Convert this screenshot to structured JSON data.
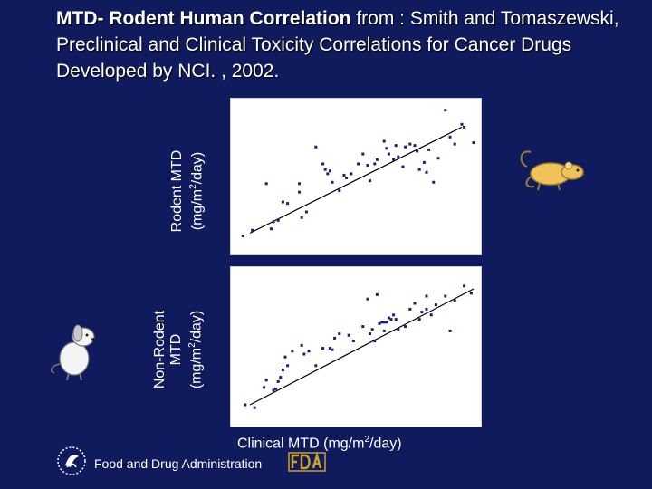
{
  "title": {
    "bold": "MTD- Rodent Human Correlation",
    "rest": " from : Smith and Tomaszewski, Preclinical and Clinical Toxicity Correlations for Cancer  Drugs Developed by NCI. ,  2002."
  },
  "axes": {
    "rodent_y_line1": "Rodent MTD",
    "rodent_y_line2_pre": "(mg/m",
    "rodent_y_line2_sup": "2",
    "rodent_y_line2_post": "/day)",
    "nonrodent_y_line1": "Non-Rodent",
    "nonrodent_y_line2": "MTD",
    "nonrodent_y_line3_pre": "(mg/m",
    "nonrodent_y_line3_sup": "2",
    "nonrodent_y_line3_post": "/day)",
    "x_pre": "Clinical MTD (mg/m",
    "x_sup": "2",
    "x_post": "/day)"
  },
  "footer": {
    "agency": "Food and Drug Administration"
  },
  "icons": [
    "hhs-eagle-icon",
    "fda-logo-icon",
    "rat-icon",
    "dog-icon"
  ],
  "colors": {
    "background": "#0f1b5c",
    "points": "#1a1f6e",
    "line": "#000000",
    "plot_bg": "#ffffff"
  },
  "chart_data": [
    {
      "type": "scatter",
      "name": "rodent",
      "title": "",
      "xlabel": "Clinical MTD (mg/m2/day)",
      "ylabel": "Rodent MTD (mg/m2/day)",
      "xlim": [
        0,
        100
      ],
      "ylim": [
        0,
        100
      ],
      "trendline": {
        "x": [
          5,
          95
        ],
        "y": [
          10,
          85
        ]
      },
      "points": [
        [
          2,
          8
        ],
        [
          6,
          12
        ],
        [
          14,
          13
        ],
        [
          15,
          18
        ],
        [
          17,
          19
        ],
        [
          12,
          45
        ],
        [
          19,
          32
        ],
        [
          21,
          31
        ],
        [
          27,
          21
        ],
        [
          29,
          25
        ],
        [
          26,
          39
        ],
        [
          26,
          45
        ],
        [
          37,
          55
        ],
        [
          38,
          52
        ],
        [
          40,
          46
        ],
        [
          39,
          54
        ],
        [
          33,
          71
        ],
        [
          43,
          40
        ],
        [
          45,
          51
        ],
        [
          46,
          49
        ],
        [
          48,
          52
        ],
        [
          51,
          59
        ],
        [
          53,
          66
        ],
        [
          55,
          58
        ],
        [
          56,
          47
        ],
        [
          58,
          59
        ],
        [
          59,
          62
        ],
        [
          62,
          75
        ],
        [
          63,
          70
        ],
        [
          64,
          66
        ],
        [
          66,
          62
        ],
        [
          67,
          72
        ],
        [
          68,
          64
        ],
        [
          70,
          57
        ],
        [
          71,
          71
        ],
        [
          73,
          73
        ],
        [
          75,
          72
        ],
        [
          76,
          68
        ],
        [
          77,
          55
        ],
        [
          79,
          60
        ],
        [
          80,
          53
        ],
        [
          81,
          69
        ],
        [
          83,
          46
        ],
        [
          85,
          63
        ],
        [
          88,
          97
        ],
        [
          90,
          78
        ],
        [
          92,
          73
        ],
        [
          95,
          87
        ],
        [
          96,
          85
        ],
        [
          100,
          74
        ],
        [
          36,
          59
        ]
      ]
    },
    {
      "type": "scatter",
      "name": "non-rodent",
      "title": "",
      "xlabel": "Clinical MTD (mg/m2/day)",
      "ylabel": "Non-Rodent MTD (mg/m2/day)",
      "xlim": [
        0,
        100
      ],
      "ylim": [
        0,
        100
      ],
      "trendline": {
        "x": [
          5,
          100
        ],
        "y": [
          10,
          90
        ]
      },
      "points": [
        [
          3,
          10
        ],
        [
          7,
          8
        ],
        [
          11,
          22
        ],
        [
          12,
          27
        ],
        [
          15,
          20
        ],
        [
          16,
          21
        ],
        [
          17,
          26
        ],
        [
          18,
          29
        ],
        [
          19,
          34
        ],
        [
          21,
          37
        ],
        [
          20,
          43
        ],
        [
          23,
          47
        ],
        [
          27,
          51
        ],
        [
          30,
          47
        ],
        [
          28,
          45
        ],
        [
          33,
          37
        ],
        [
          36,
          49
        ],
        [
          39,
          49
        ],
        [
          40,
          48
        ],
        [
          41,
          56
        ],
        [
          43,
          59
        ],
        [
          47,
          58
        ],
        [
          49,
          54
        ],
        [
          53,
          64
        ],
        [
          56,
          59
        ],
        [
          57,
          62
        ],
        [
          58,
          54
        ],
        [
          60,
          66
        ],
        [
          61,
          67
        ],
        [
          62,
          67
        ],
        [
          62,
          61
        ],
        [
          63,
          67
        ],
        [
          64,
          70
        ],
        [
          65,
          69
        ],
        [
          66,
          72
        ],
        [
          67,
          69
        ],
        [
          68,
          62
        ],
        [
          71,
          64
        ],
        [
          73,
          76
        ],
        [
          75,
          80
        ],
        [
          77,
          69
        ],
        [
          78,
          74
        ],
        [
          80,
          85
        ],
        [
          80,
          76
        ],
        [
          82,
          72
        ],
        [
          84,
          79
        ],
        [
          88,
          85
        ],
        [
          90,
          61
        ],
        [
          92,
          82
        ],
        [
          96,
          92
        ],
        [
          99,
          87
        ],
        [
          55,
          83
        ],
        [
          59,
          86
        ]
      ]
    }
  ]
}
